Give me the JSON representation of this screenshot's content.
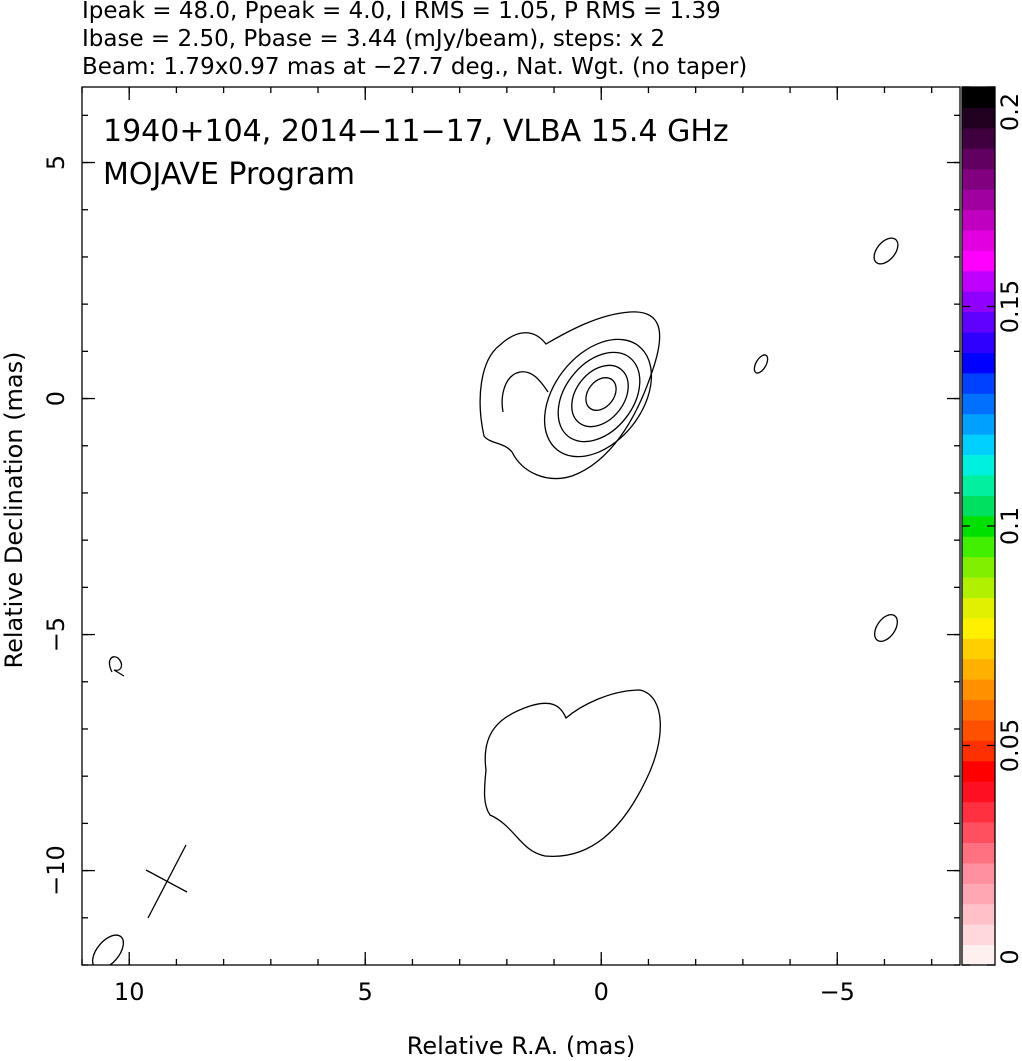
{
  "chart_data": {
    "type": "contour",
    "title_lines": [
      "Ipeak = 48.0, Ppeak = 4.0, I RMS = 1.05, P RMS = 1.39",
      "Ibase = 2.50, Pbase = 3.44 (mJy/beam), steps: x 2",
      "Beam: 1.79x0.97 mas at −27.7 deg., Nat. Wgt. (no taper)"
    ],
    "annotations": [
      "1940+104, 2014−11−17, VLBA 15.4 GHz",
      "MOJAVE Program"
    ],
    "xlabel": "Relative R.A. (mas)",
    "ylabel": "Relative Declination (mas)",
    "xlim": [
      11.0,
      -7.6
    ],
    "ylim": [
      -12.0,
      6.6
    ],
    "xticks": [
      10,
      5,
      0,
      {
        "value": -5,
        "label": "−5"
      }
    ],
    "yticks": [
      {
        "value": -10,
        "label": "−10"
      },
      {
        "value": -5,
        "label": "−5"
      },
      0,
      5
    ],
    "minor_tick_step": 1,
    "colorbar": {
      "lim": [
        0,
        0.2
      ],
      "ticks": [
        0,
        0.05,
        0.1,
        0.15,
        0.2
      ],
      "colors": [
        "#fff0f0",
        "#ffd8dc",
        "#ffc0c8",
        "#ffa8b4",
        "#ff90a0",
        "#ff7080",
        "#ff5060",
        "#ff3040",
        "#ff1020",
        "#ff0000",
        "#ff3000",
        "#ff5000",
        "#ff7000",
        "#ff9000",
        "#ffb000",
        "#ffd000",
        "#fff000",
        "#e0f000",
        "#b0f000",
        "#80f000",
        "#40f000",
        "#00e000",
        "#00e060",
        "#00f0a0",
        "#00f0e0",
        "#00d0ff",
        "#00a0ff",
        "#0070ff",
        "#0040ff",
        "#0000ff",
        "#3000ff",
        "#6000ff",
        "#9000ff",
        "#c000ff",
        "#ff00ff",
        "#e000e0",
        "#c000c0",
        "#a000a0",
        "#800080",
        "#600060",
        "#400040",
        "#200020",
        "#000000"
      ]
    }
  }
}
